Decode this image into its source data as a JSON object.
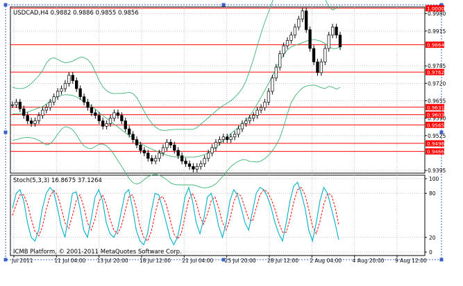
{
  "colors": {
    "level_line": "#ff0000",
    "level_badge": "#ff0000",
    "band": "#3cb371",
    "candle": "#000000",
    "stoch_main": "#00b0c8",
    "stoch_signal": "#ff0000",
    "selection_dots": "#3a62c4",
    "selection_handle": "#3a62c4",
    "axis_text": "#000000"
  },
  "chart": {
    "title": "USDCAD,H4  0.9882 0.9886 0.9855 0.9856",
    "copyright": "ICMB Platform, © 2001-2011 MetaQuotes Software Corp.",
    "price_ticks": [
      "0.9980",
      "0.9915",
      "0.9785",
      "0.9720",
      "0.9655",
      "0.9590",
      "0.9525",
      "0.9395"
    ],
    "price_range": [
      0.9385,
      1.0005
    ],
    "level_labels": [
      "1.0000",
      "0.9864",
      "0.9762",
      "0.9631",
      "0.9603",
      "0.9565",
      "0.9496",
      "0.9466"
    ],
    "x_labels": [
      "Jul 2011",
      "11 Jul 04:00",
      "13 Jul 20:00",
      "18 Jul 12:00",
      "21 Jul 04:00",
      "25 Jul 20:00",
      "28 Jul 12:00",
      "2 Aug 04:00",
      "4 Aug 20:00",
      "9 Aug 12:00"
    ]
  },
  "stochastic": {
    "title": "Stoch(5,3,3) 16.8675 37.1264",
    "ticks": [
      "100",
      "80",
      "20",
      "0"
    ]
  },
  "chart_data": {
    "type": "line",
    "series": [
      {
        "values": [
          0.964,
          0.965,
          0.9625,
          0.96,
          0.958,
          0.957,
          0.958,
          0.96,
          0.962,
          0.963,
          0.965,
          0.967,
          0.969,
          0.97,
          0.972,
          0.975,
          0.973,
          0.97,
          0.967,
          0.965,
          0.963,
          0.961,
          0.96,
          0.958,
          0.956,
          0.957,
          0.959,
          0.961,
          0.96,
          0.958,
          0.955,
          0.953,
          0.951,
          0.949,
          0.947,
          0.946,
          0.944,
          0.943,
          0.944,
          0.946,
          0.948,
          0.95,
          0.949,
          0.947,
          0.945,
          0.943,
          0.942,
          0.941,
          0.94,
          0.941,
          0.942,
          0.944,
          0.946,
          0.948,
          0.95,
          0.951,
          0.952,
          0.951,
          0.952,
          0.953,
          0.955,
          0.957,
          0.958,
          0.959,
          0.96,
          0.962,
          0.963,
          0.965,
          0.969,
          0.974,
          0.978,
          0.983,
          0.986,
          0.988,
          0.99,
          0.993,
          0.996,
          0.999,
          0.992,
          0.985,
          0.98,
          0.976,
          0.98,
          0.985,
          0.99,
          0.993,
          0.99,
          0.9856
        ]
      },
      {
        "values": [
          60,
          80,
          85,
          70,
          40,
          20,
          15,
          30,
          60,
          80,
          88,
          82,
          60,
          35,
          20,
          50,
          80,
          82,
          60,
          30,
          20,
          45,
          75,
          85,
          70,
          40,
          25,
          20,
          30,
          55,
          80,
          85,
          60,
          30,
          15,
          10,
          25,
          55,
          80,
          78,
          60,
          40,
          20,
          10,
          20,
          45,
          75,
          88,
          70,
          40,
          25,
          45,
          75,
          80,
          60,
          35,
          20,
          40,
          70,
          85,
          78,
          60,
          40,
          30,
          55,
          80,
          88,
          85,
          75,
          60,
          40,
          25,
          15,
          40,
          70,
          90,
          95,
          80,
          60,
          30,
          15,
          40,
          70,
          88,
          80,
          60,
          40,
          16.8675
        ]
      },
      {
        "values": [
          50,
          65,
          78,
          78,
          65,
          45,
          28,
          22,
          35,
          58,
          76,
          84,
          78,
          60,
          40,
          32,
          50,
          70,
          78,
          62,
          40,
          30,
          45,
          68,
          78,
          65,
          45,
          30,
          25,
          35,
          55,
          75,
          78,
          60,
          35,
          20,
          15,
          28,
          52,
          72,
          76,
          65,
          45,
          25,
          18,
          25,
          48,
          72,
          80,
          68,
          48,
          38,
          52,
          70,
          75,
          60,
          40,
          30,
          45,
          68,
          80,
          76,
          60,
          45,
          42,
          60,
          78,
          85,
          82,
          72,
          58,
          40,
          27,
          27,
          45,
          68,
          85,
          88,
          78,
          58,
          35,
          25,
          42,
          65,
          80,
          78,
          62,
          37.1264
        ]
      }
    ],
    "ylim": [
      0.9385,
      1.0005
    ]
  }
}
